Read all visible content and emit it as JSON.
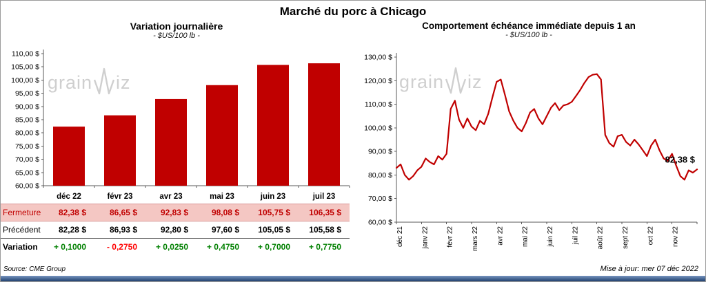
{
  "page": {
    "title": "Marché du porc à Chicago",
    "source": "Source: CME Group",
    "updated": "Mise à jour: mer 07 déc 2022"
  },
  "watermark": {
    "prefix": "grain",
    "suffix": "iz",
    "icon": "pulse-w-icon"
  },
  "colors": {
    "series": "#C00000",
    "positive": "#008000",
    "negative": "#FF0000",
    "fermeture_bg": "#F4C7C3",
    "fermeture_border": "#D99694",
    "bottom_bar": "#2E5C9E",
    "watermark": "#CFCFCF"
  },
  "chart_data": [
    {
      "type": "bar",
      "title": "Variation journalière",
      "subtitle": "- $US/100 lb -",
      "categories": [
        "déc 22",
        "févr 23",
        "avr 23",
        "mai 23",
        "juin 23",
        "juil 23"
      ],
      "values": [
        82.38,
        86.65,
        92.83,
        98.08,
        105.75,
        106.35
      ],
      "ylim": [
        60,
        110
      ],
      "ytick_step": 5,
      "ytick_labels": [
        "110,00 $",
        "105,00 $",
        "100,00 $",
        "95,00 $",
        "90,00 $",
        "85,00 $",
        "80,00 $",
        "75,00 $",
        "70,00 $",
        "65,00 $",
        "60,00 $"
      ],
      "bar_color": "#C00000",
      "grid": false,
      "legend": false
    },
    {
      "type": "line",
      "title": "Comportement échéance immédiate depuis 1 an",
      "subtitle": "- $US/100 lb -",
      "x_labels": [
        "déc 21",
        "janv 22",
        "févr 22",
        "mars 22",
        "avr 22",
        "mai 22",
        "juin 22",
        "juil 22",
        "août 22",
        "sept 22",
        "oct 22",
        "nov 22"
      ],
      "values": [
        83,
        84.5,
        80,
        78,
        79.5,
        82,
        83.5,
        87,
        85.5,
        84.5,
        88,
        86.5,
        89,
        108,
        111.5,
        103.5,
        100,
        104,
        100.5,
        99,
        103,
        101.5,
        106,
        113,
        119.5,
        120.5,
        114,
        107,
        103,
        100,
        98.5,
        102,
        106.5,
        108,
        104,
        101.5,
        105,
        108.5,
        110.5,
        107.5,
        109.5,
        110,
        111,
        113.5,
        116,
        119,
        121.5,
        122.5,
        122.8,
        120.5,
        97,
        93.5,
        92,
        96.5,
        97,
        94,
        92.5,
        95,
        93,
        90.5,
        88,
        92.5,
        95,
        90.5,
        87,
        86,
        89,
        84,
        79.5,
        78,
        82,
        81,
        82.38
      ],
      "ylim": [
        60,
        130
      ],
      "ytick_step": 10,
      "ytick_labels": [
        "130,00 $",
        "120,00 $",
        "110,00 $",
        "100,00 $",
        "90,00 $",
        "80,00 $",
        "70,00 $",
        "60,00 $"
      ],
      "annotation": "82,38 $",
      "line_color": "#C00000",
      "grid": false,
      "legend": false
    }
  ],
  "table": {
    "rows": [
      {
        "label": "Fermeture",
        "values": [
          "82,38 $",
          "86,65 $",
          "92,83 $",
          "98,08 $",
          "105,75 $",
          "106,35 $"
        ]
      },
      {
        "label": "Précédent",
        "values": [
          "82,28 $",
          "86,93 $",
          "92,80 $",
          "97,60 $",
          "105,05 $",
          "105,58 $"
        ]
      },
      {
        "label": "Variation",
        "values": [
          "+ 0,1000",
          "- 0,2750",
          "+ 0,0250",
          "+ 0,4750",
          "+ 0,7000",
          "+ 0,7750"
        ]
      }
    ]
  }
}
